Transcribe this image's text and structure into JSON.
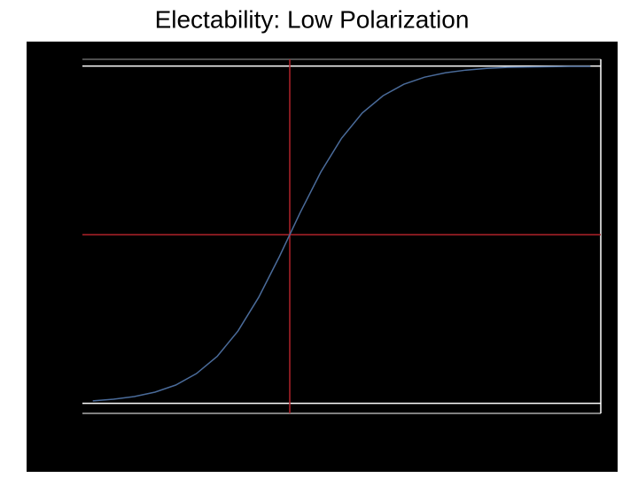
{
  "chart_data": {
    "type": "line",
    "title": "Electability: Low Polarization",
    "background": "#000000",
    "x": [
      2,
      6,
      10,
      14,
      18,
      22,
      26,
      30,
      34,
      38,
      42,
      46,
      50,
      54,
      58,
      62,
      66,
      70,
      74,
      78,
      82,
      86,
      90,
      94,
      98
    ],
    "series": [
      {
        "color": "#4a6b9a",
        "values": [
          0.007,
          0.012,
          0.02,
          0.033,
          0.054,
          0.088,
          0.139,
          0.214,
          0.314,
          0.435,
          0.565,
          0.686,
          0.786,
          0.861,
          0.912,
          0.946,
          0.967,
          0.98,
          0.988,
          0.993,
          0.996,
          0.997,
          0.998,
          0.999,
          0.999
        ]
      }
    ],
    "xlim": [
      0,
      100
    ],
    "ylim": [
      -0.03,
      1.02
    ],
    "reference_lines": [
      {
        "axis": "y",
        "value": 0,
        "color": "#ffffff"
      },
      {
        "axis": "y",
        "value": 1,
        "color": "#ffffff"
      },
      {
        "axis": "y",
        "value": 0.5,
        "color": "#b0222a"
      },
      {
        "axis": "x",
        "value": 40,
        "color": "#b0222a"
      }
    ]
  }
}
